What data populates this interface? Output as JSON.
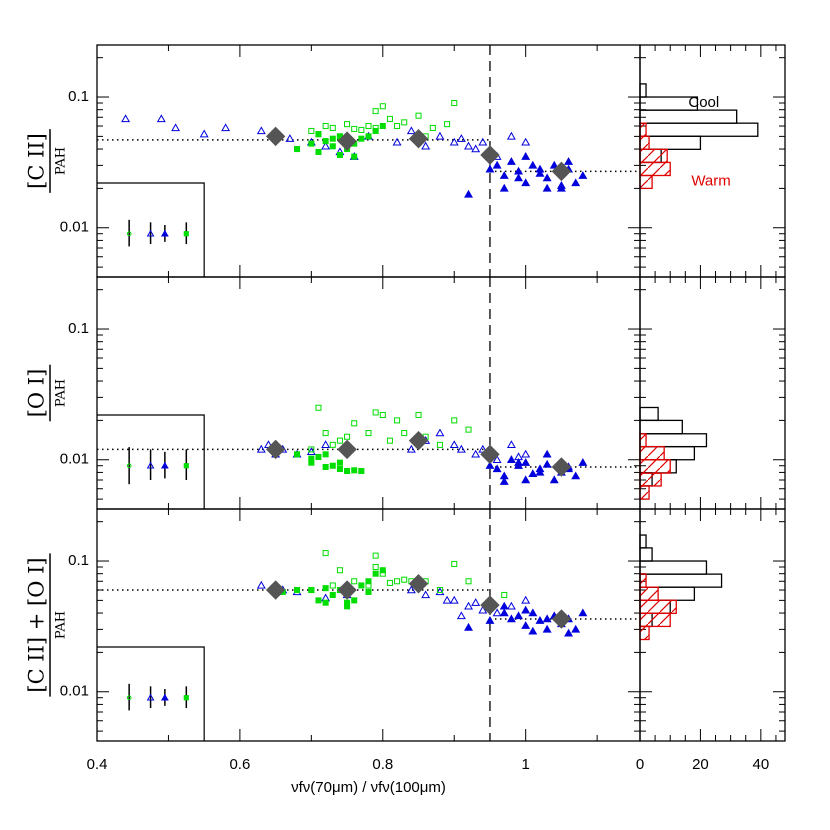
{
  "chart_data": [
    {
      "type": "scatter",
      "log_y": true,
      "ylabel": {
        "numerator": "[C II]",
        "denominator": "PAH"
      },
      "xlim": [
        0.4,
        1.16
      ],
      "ylim": [
        0.0042,
        0.25
      ],
      "yticks": [
        0.01,
        0.1
      ],
      "yminorticks": [
        0.005,
        0.006,
        0.007,
        0.008,
        0.009,
        0.02,
        0.03,
        0.04,
        0.05,
        0.06,
        0.07,
        0.08,
        0.09,
        0.2
      ],
      "vline": 0.95,
      "hlines": [
        {
          "x": [
            0.4,
            0.95
          ],
          "value": 0.047
        },
        {
          "x": [
            0.95,
            1.16
          ],
          "value": 0.027
        }
      ],
      "inset_box": {
        "x": [
          0.4,
          0.55
        ],
        "top": 0.022
      },
      "series": [
        {
          "marker": "triangle",
          "filled": false,
          "color": "#0000dd",
          "x": [
            0.44,
            0.49,
            0.51,
            0.55,
            0.58,
            0.63,
            0.65,
            0.67,
            0.7,
            0.72,
            0.74,
            0.76,
            0.78,
            0.82,
            0.84,
            0.86,
            0.88,
            0.9,
            0.91,
            0.92,
            0.93,
            0.94,
            0.96,
            0.98,
            1.0
          ],
          "values": [
            0.068,
            0.068,
            0.058,
            0.052,
            0.058,
            0.055,
            0.05,
            0.048,
            0.045,
            0.042,
            0.038,
            0.035,
            0.05,
            0.045,
            0.055,
            0.042,
            0.05,
            0.045,
            0.048,
            0.042,
            0.04,
            0.045,
            0.035,
            0.05,
            0.045
          ]
        },
        {
          "marker": "triangle",
          "filled": true,
          "color": "#0000dd",
          "x": [
            0.95,
            0.96,
            0.97,
            0.98,
            0.99,
            1.0,
            1.01,
            1.02,
            1.03,
            1.04,
            1.05,
            1.06,
            1.07,
            1.08,
            0.97,
            1.0,
            1.03,
            1.06,
            0.92,
            0.99,
            1.02,
            1.05
          ],
          "values": [
            0.028,
            0.03,
            0.025,
            0.032,
            0.027,
            0.022,
            0.03,
            0.026,
            0.024,
            0.03,
            0.02,
            0.028,
            0.022,
            0.025,
            0.02,
            0.035,
            0.02,
            0.032,
            0.018,
            0.024,
            0.028,
            0.021
          ]
        },
        {
          "marker": "square",
          "filled": false,
          "color": "#00dd00",
          "x": [
            0.7,
            0.72,
            0.73,
            0.75,
            0.76,
            0.77,
            0.78,
            0.79,
            0.8,
            0.81,
            0.82,
            0.83,
            0.85,
            0.87,
            0.89,
            0.9,
            0.86,
            0.74,
            0.71,
            0.79
          ],
          "values": [
            0.055,
            0.06,
            0.058,
            0.062,
            0.057,
            0.056,
            0.06,
            0.078,
            0.085,
            0.068,
            0.06,
            0.064,
            0.072,
            0.058,
            0.062,
            0.09,
            0.05,
            0.05,
            0.052,
            0.058
          ]
        },
        {
          "marker": "square",
          "filled": true,
          "color": "#00dd00",
          "x": [
            0.68,
            0.7,
            0.71,
            0.72,
            0.73,
            0.74,
            0.75,
            0.76,
            0.77,
            0.78,
            0.79,
            0.8,
            0.71,
            0.74,
            0.76,
            0.73
          ],
          "values": [
            0.04,
            0.044,
            0.038,
            0.046,
            0.042,
            0.05,
            0.04,
            0.044,
            0.048,
            0.05,
            0.055,
            0.06,
            0.052,
            0.036,
            0.035,
            0.048
          ]
        },
        {
          "marker": "diamond",
          "filled": true,
          "color": "#555555",
          "x": [
            0.65,
            0.75,
            0.85,
            0.95,
            1.05
          ],
          "values": [
            0.05,
            0.046,
            0.048,
            0.036,
            0.027
          ]
        }
      ],
      "error_points": {
        "x": [
          0.445,
          0.475,
          0.495,
          0.525
        ],
        "values": [
          0.009,
          0.009,
          0.009,
          0.009
        ],
        "lower": [
          0.0072,
          0.0075,
          0.0078,
          0.0075
        ],
        "upper": [
          0.0115,
          0.011,
          0.0105,
          0.011
        ],
        "markers": [
          "circle",
          "triangle",
          "triangle",
          "square"
        ],
        "filled": [
          false,
          false,
          true,
          true
        ],
        "colors": [
          "#00dd00",
          "#0000dd",
          "#0000dd",
          "#00dd00"
        ]
      }
    },
    {
      "type": "scatter",
      "log_y": true,
      "ylabel": {
        "numerator": "[O I]",
        "denominator": "PAH"
      },
      "xlim": [
        0.4,
        1.16
      ],
      "ylim": [
        0.0042,
        0.25
      ],
      "yticks": [
        0.01,
        0.1
      ],
      "yminorticks": [
        0.005,
        0.006,
        0.007,
        0.008,
        0.009,
        0.02,
        0.03,
        0.04,
        0.05,
        0.06,
        0.07,
        0.08,
        0.09,
        0.2
      ],
      "vline": 0.95,
      "hlines": [
        {
          "x": [
            0.4,
            0.95
          ],
          "value": 0.012
        },
        {
          "x": [
            0.95,
            1.16
          ],
          "value": 0.0088
        }
      ],
      "inset_box": {
        "x": [
          0.4,
          0.55
        ],
        "top": 0.022
      },
      "series": [
        {
          "marker": "triangle",
          "filled": false,
          "color": "#0000dd",
          "x": [
            0.63,
            0.64,
            0.65,
            0.66,
            0.68,
            0.7,
            0.72,
            0.84,
            0.86,
            0.88,
            0.9,
            0.91,
            0.93,
            0.94,
            0.96,
            0.98,
            1.0,
            0.99
          ],
          "values": [
            0.012,
            0.013,
            0.011,
            0.012,
            0.011,
            0.0115,
            0.013,
            0.012,
            0.014,
            0.016,
            0.013,
            0.012,
            0.011,
            0.012,
            0.01,
            0.013,
            0.011,
            0.0105
          ]
        },
        {
          "marker": "triangle",
          "filled": true,
          "color": "#0000dd",
          "x": [
            0.95,
            0.96,
            0.97,
            0.98,
            0.99,
            1.0,
            1.01,
            1.02,
            1.03,
            1.04,
            1.05,
            1.06,
            1.07,
            1.08,
            0.97,
            1.0,
            1.03,
            1.06,
            0.99,
            1.02
          ],
          "values": [
            0.009,
            0.0085,
            0.0075,
            0.01,
            0.009,
            0.0095,
            0.0078,
            0.0085,
            0.0092,
            0.007,
            0.008,
            0.0088,
            0.0075,
            0.0095,
            0.0068,
            0.007,
            0.011,
            0.0085,
            0.0095,
            0.008
          ]
        },
        {
          "marker": "square",
          "filled": false,
          "color": "#00dd00",
          "x": [
            0.7,
            0.71,
            0.72,
            0.73,
            0.74,
            0.76,
            0.78,
            0.8,
            0.81,
            0.82,
            0.83,
            0.85,
            0.86,
            0.88,
            0.9,
            0.92,
            0.79,
            0.75
          ],
          "values": [
            0.012,
            0.025,
            0.016,
            0.013,
            0.014,
            0.019,
            0.016,
            0.022,
            0.014,
            0.02,
            0.016,
            0.022,
            0.015,
            0.013,
            0.02,
            0.017,
            0.023,
            0.015
          ]
        },
        {
          "marker": "square",
          "filled": true,
          "color": "#00dd00",
          "x": [
            0.68,
            0.7,
            0.71,
            0.72,
            0.73,
            0.74,
            0.75,
            0.76,
            0.77,
            0.74,
            0.72,
            0.7
          ],
          "values": [
            0.011,
            0.0095,
            0.0105,
            0.0088,
            0.009,
            0.0085,
            0.0082,
            0.0083,
            0.0082,
            0.0095,
            0.011,
            0.0102
          ]
        },
        {
          "marker": "diamond",
          "filled": true,
          "color": "#555555",
          "x": [
            0.65,
            0.75,
            0.85,
            0.95,
            1.05
          ],
          "values": [
            0.012,
            0.012,
            0.014,
            0.011,
            0.0088
          ]
        }
      ],
      "error_points": {
        "x": [
          0.445,
          0.475,
          0.495,
          0.525
        ],
        "values": [
          0.009,
          0.009,
          0.009,
          0.009
        ],
        "lower": [
          0.0065,
          0.007,
          0.0072,
          0.007
        ],
        "upper": [
          0.0125,
          0.012,
          0.0115,
          0.012
        ],
        "markers": [
          "circle",
          "triangle",
          "triangle",
          "square"
        ],
        "filled": [
          false,
          false,
          true,
          true
        ],
        "colors": [
          "#00dd00",
          "#0000dd",
          "#0000dd",
          "#00dd00"
        ]
      }
    },
    {
      "type": "scatter",
      "log_y": true,
      "ylabel": {
        "numerator": "[C II] + [O I]",
        "denominator": "PAH"
      },
      "xlabel": "νfν(70μm) / νfν(100μm)",
      "xlim": [
        0.4,
        1.16
      ],
      "ylim": [
        0.0042,
        0.25
      ],
      "yticks": [
        0.01,
        0.1
      ],
      "yminorticks": [
        0.005,
        0.006,
        0.007,
        0.008,
        0.009,
        0.02,
        0.03,
        0.04,
        0.05,
        0.06,
        0.07,
        0.08,
        0.09,
        0.2
      ],
      "xticks": [
        0.4,
        0.6,
        0.8,
        1
      ],
      "xminorticks": [
        0.5,
        0.7,
        0.9,
        1.1
      ],
      "vline": 0.95,
      "hlines": [
        {
          "x": [
            0.4,
            0.95
          ],
          "value": 0.06
        },
        {
          "x": [
            0.95,
            1.16
          ],
          "value": 0.036
        }
      ],
      "inset_box": {
        "x": [
          0.4,
          0.55
        ],
        "top": 0.022
      },
      "series": [
        {
          "marker": "triangle",
          "filled": false,
          "color": "#0000dd",
          "x": [
            0.63,
            0.66,
            0.68,
            0.72,
            0.75,
            0.84,
            0.86,
            0.88,
            0.9,
            0.92,
            0.93,
            0.94,
            0.96,
            0.98,
            1.0,
            0.89,
            0.91
          ],
          "values": [
            0.065,
            0.06,
            0.058,
            0.052,
            0.055,
            0.06,
            0.055,
            0.058,
            0.05,
            0.045,
            0.048,
            0.042,
            0.04,
            0.045,
            0.05,
            0.05,
            0.038
          ]
        },
        {
          "marker": "triangle",
          "filled": true,
          "color": "#0000dd",
          "x": [
            0.92,
            0.95,
            0.97,
            0.98,
            0.99,
            1.0,
            1.01,
            1.02,
            1.03,
            1.04,
            1.05,
            1.06,
            1.07,
            1.08,
            0.97,
            1.0,
            1.03,
            1.06,
            1.01
          ],
          "values": [
            0.031,
            0.035,
            0.04,
            0.036,
            0.038,
            0.032,
            0.04,
            0.035,
            0.03,
            0.038,
            0.033,
            0.036,
            0.03,
            0.04,
            0.045,
            0.042,
            0.036,
            0.028,
            0.029
          ]
        },
        {
          "marker": "square",
          "filled": false,
          "color": "#00dd00",
          "x": [
            0.7,
            0.72,
            0.74,
            0.76,
            0.78,
            0.79,
            0.8,
            0.81,
            0.82,
            0.83,
            0.84,
            0.86,
            0.88,
            0.9,
            0.92,
            0.97,
            0.79,
            0.73
          ],
          "values": [
            0.06,
            0.115,
            0.085,
            0.07,
            0.065,
            0.11,
            0.08,
            0.068,
            0.07,
            0.072,
            0.07,
            0.07,
            0.06,
            0.095,
            0.07,
            0.055,
            0.09,
            0.065
          ]
        },
        {
          "marker": "square",
          "filled": true,
          "color": "#00dd00",
          "x": [
            0.66,
            0.68,
            0.7,
            0.71,
            0.72,
            0.73,
            0.74,
            0.75,
            0.76,
            0.77,
            0.78,
            0.79,
            0.8,
            0.72,
            0.75,
            0.78
          ],
          "values": [
            0.058,
            0.06,
            0.06,
            0.05,
            0.062,
            0.055,
            0.06,
            0.048,
            0.05,
            0.065,
            0.07,
            0.08,
            0.085,
            0.048,
            0.045,
            0.058
          ]
        },
        {
          "marker": "diamond",
          "filled": true,
          "color": "#555555",
          "x": [
            0.65,
            0.75,
            0.85,
            0.95,
            1.05
          ],
          "values": [
            0.06,
            0.06,
            0.067,
            0.046,
            0.036
          ]
        }
      ],
      "error_points": {
        "x": [
          0.445,
          0.475,
          0.495,
          0.525
        ],
        "values": [
          0.009,
          0.009,
          0.009,
          0.009
        ],
        "lower": [
          0.0072,
          0.0075,
          0.0078,
          0.0075
        ],
        "upper": [
          0.0115,
          0.011,
          0.0105,
          0.011
        ],
        "markers": [
          "circle",
          "triangle",
          "triangle",
          "square"
        ],
        "filled": [
          false,
          false,
          true,
          true
        ],
        "colors": [
          "#00dd00",
          "#0000dd",
          "#0000dd",
          "#00dd00"
        ]
      }
    },
    {
      "type": "histogram",
      "log_y": true,
      "xlim": [
        0,
        48
      ],
      "ylim": [
        0.0042,
        0.25
      ],
      "series": [
        {
          "name": "Cool",
          "color": "#000000",
          "hatched": false,
          "bins": [
            0.0316,
            0.0398,
            0.0501,
            0.0631,
            0.0794,
            0.1,
            0.126
          ],
          "counts": [
            7,
            20,
            39,
            32,
            19,
            2
          ]
        },
        {
          "name": "Warm",
          "color": "#e00000",
          "hatched": true,
          "bins": [
            0.02,
            0.0251,
            0.0316,
            0.0398,
            0.0501,
            0.0631
          ],
          "counts": [
            4,
            10,
            9,
            3,
            2
          ]
        }
      ]
    },
    {
      "type": "histogram",
      "log_y": true,
      "xlim": [
        0,
        48
      ],
      "ylim": [
        0.0042,
        0.25
      ],
      "series": [
        {
          "color": "#000000",
          "hatched": false,
          "bins": [
            0.00631,
            0.00794,
            0.01,
            0.0126,
            0.0158,
            0.02,
            0.0251
          ],
          "counts": [
            4,
            12,
            18,
            22,
            14,
            6
          ]
        },
        {
          "color": "#e00000",
          "hatched": true,
          "bins": [
            0.005,
            0.0063,
            0.0079,
            0.01,
            0.0126,
            0.0158
          ],
          "counts": [
            3,
            7,
            10,
            8,
            2
          ]
        }
      ]
    },
    {
      "type": "histogram",
      "log_y": true,
      "xlim": [
        0,
        48
      ],
      "ylim": [
        0.0042,
        0.25
      ],
      "xticks": [
        0,
        20,
        40
      ],
      "xminorticks": [
        5,
        10,
        15,
        25,
        30,
        35,
        45
      ],
      "series": [
        {
          "color": "#000000",
          "hatched": false,
          "bins": [
            0.0316,
            0.0398,
            0.0501,
            0.0631,
            0.0794,
            0.1,
            0.126,
            0.158
          ],
          "counts": [
            4,
            10,
            18,
            27,
            22,
            4,
            2
          ]
        },
        {
          "color": "#e00000",
          "hatched": true,
          "bins": [
            0.0251,
            0.0316,
            0.0398,
            0.0501,
            0.0631,
            0.0794
          ],
          "counts": [
            3,
            10,
            12,
            6,
            2
          ]
        }
      ]
    }
  ]
}
